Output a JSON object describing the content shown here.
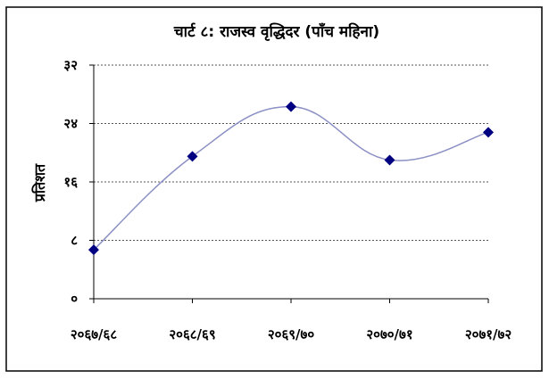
{
  "chart_data": {
    "type": "line",
    "title": "चार्ट ८: राजस्व वृद्धिदर (पाँच महिना)",
    "xlabel": "",
    "ylabel": "प्रतिशत",
    "categories": [
      "२०६७/६८",
      "२०६८/६९",
      "२०६९/७०",
      "२०७०/७१",
      "२०७१/७२"
    ],
    "series": [
      {
        "values": [
          6.7,
          19.5,
          26.3,
          19.0,
          22.8
        ]
      }
    ],
    "ylim": [
      0,
      32
    ],
    "yticks": [
      0,
      8,
      16,
      24,
      32
    ],
    "ytick_labels": [
      "०",
      "८",
      "१६",
      "२४",
      "३२"
    ],
    "grid": true,
    "legend": "none",
    "line_color": "#8b90c4",
    "marker_color": "#000080"
  }
}
